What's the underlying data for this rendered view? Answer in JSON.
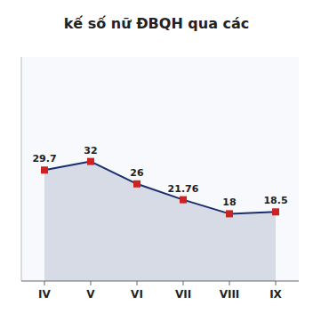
{
  "chart_data": {
    "type": "area",
    "title": "kế số nữ ĐBQH qua các",
    "categories": [
      "IV",
      "V",
      "VI",
      "VII",
      "VIII",
      "IX"
    ],
    "values": [
      29.7,
      32,
      26,
      21.76,
      18,
      18.5
    ],
    "color": "#1a2e6e",
    "marker": "square",
    "ylim": [
      0,
      60
    ],
    "grid": false,
    "data_labels": true,
    "tick_labels": "x"
  }
}
